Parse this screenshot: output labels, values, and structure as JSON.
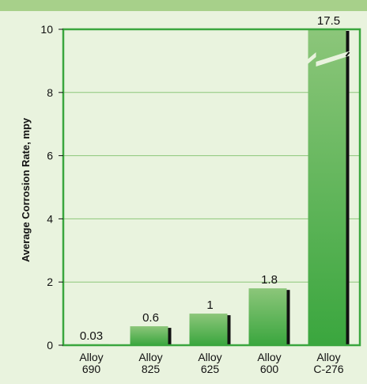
{
  "chart_data": {
    "type": "bar",
    "title": "",
    "xlabel": "",
    "ylabel": "Average Corrosion Rate, mpy",
    "ylim": [
      0,
      10
    ],
    "yticks": [
      "0",
      "2",
      "4",
      "6",
      "8",
      "10"
    ],
    "grid": true,
    "axis_break": "on the Alloy C-276 bar above 10",
    "categories": [
      [
        "Alloy",
        "690"
      ],
      [
        "Alloy",
        "825"
      ],
      [
        "Alloy",
        "625"
      ],
      [
        "Alloy",
        "600"
      ],
      [
        "Alloy",
        "C-276"
      ]
    ],
    "values": [
      0.03,
      0.6,
      1,
      1.8,
      17.5
    ],
    "value_labels": [
      "0.03",
      "0.6",
      "1",
      "1.8",
      "17.5"
    ],
    "colors": {
      "bar_light": "#8cc67a",
      "bar_dark": "#3aa63e",
      "bar_shadow": "#111111",
      "frame": "#3aa63e",
      "grid": "#8cc67a",
      "background": "#e9f3de",
      "top_band": "#a7d08a"
    }
  }
}
